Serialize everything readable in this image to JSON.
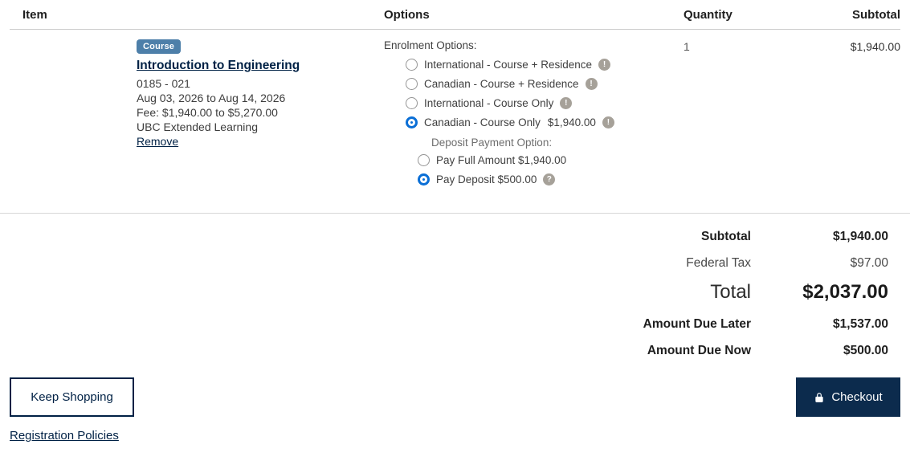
{
  "colors": {
    "navy": "#002145",
    "checkout_bg": "#0c2b4d",
    "badge_blue": "#4d7fa9",
    "radio_blue": "#0b6fd6",
    "icon_grey": "#a6a199"
  },
  "icons": {
    "alert": "!",
    "question": "?"
  },
  "header": {
    "item": "Item",
    "options": "Options",
    "quantity": "Quantity",
    "subtotal": "Subtotal"
  },
  "cart_item": {
    "badge": "Course",
    "title": "Introduction to Engineering",
    "code": "0185 - 021",
    "dates": "Aug 03, 2026 to Aug 14, 2026",
    "fee": "Fee: $1,940.00 to $5,270.00",
    "provider": "UBC Extended Learning",
    "remove_label": "Remove",
    "quantity": "1",
    "subtotal": "$1,940.00",
    "enrolment": {
      "label": "Enrolment Options:",
      "options": [
        {
          "label": "International - Course + Residence",
          "price": "",
          "selected": false,
          "info": "alert"
        },
        {
          "label": "Canadian - Course + Residence",
          "price": "",
          "selected": false,
          "info": "alert"
        },
        {
          "label": "International - Course Only",
          "price": "",
          "selected": false,
          "info": "alert"
        },
        {
          "label": "Canadian - Course Only",
          "price": "$1,940.00",
          "selected": true,
          "info": "alert"
        }
      ]
    },
    "deposit": {
      "label": "Deposit Payment Option:",
      "options": [
        {
          "label": "Pay Full Amount $1,940.00",
          "price": "",
          "selected": false,
          "info": null
        },
        {
          "label": "Pay Deposit $500.00",
          "price": "",
          "selected": true,
          "info": "question"
        }
      ]
    }
  },
  "summary": {
    "rows": [
      {
        "label": "Subtotal",
        "value": "$1,940.00",
        "style": "bold"
      },
      {
        "label": "Federal Tax",
        "value": "$97.00",
        "style": "regular"
      },
      {
        "label": "Total",
        "value": "$2,037.00",
        "style": "total"
      },
      {
        "label": "Amount Due Later",
        "value": "$1,537.00",
        "style": "bold"
      },
      {
        "label": "Amount Due Now",
        "value": "$500.00",
        "style": "bold"
      }
    ]
  },
  "footer": {
    "keep_shopping_label": "Keep Shopping",
    "checkout_label": "Checkout",
    "registration_policies_label": "Registration Policies"
  }
}
